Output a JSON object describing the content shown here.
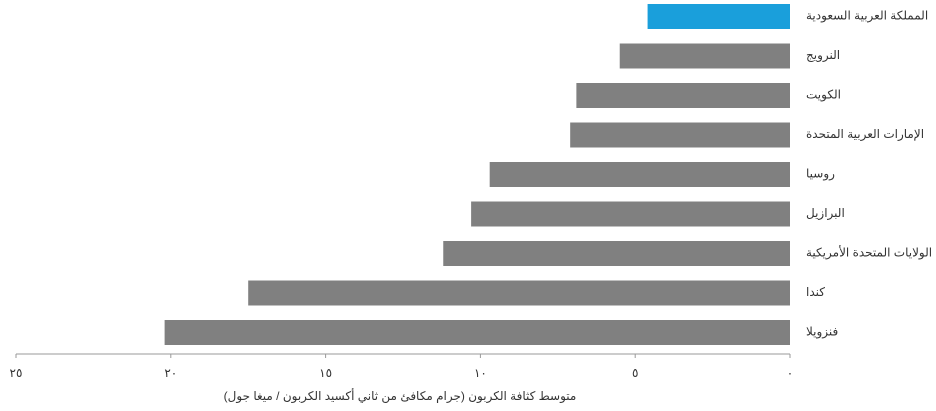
{
  "chart_data": {
    "type": "barh",
    "x_label": "متوسط كثافة الكربون (جرام مكافئ من ثاني أكسيد الكربون / ميغا جول)",
    "categories": [
      "المملكة العربية السعودية",
      "النرويج",
      "الكويت",
      "الإمارات العربية المتحدة",
      "روسيا",
      "البرازيل",
      "الولايات المتحدة الأمريكية",
      "كندا",
      "فنزويلا"
    ],
    "values": [
      4.6,
      5.5,
      6.9,
      7.1,
      9.7,
      10.3,
      11.2,
      17.5,
      20.2
    ],
    "colors": [
      "#1a9fdb",
      "#808080",
      "#808080",
      "#808080",
      "#808080",
      "#808080",
      "#808080",
      "#808080",
      "#808080"
    ],
    "xlim": [
      0,
      25
    ],
    "xticks": [
      {
        "value": 0,
        "label": "٠"
      },
      {
        "value": 5,
        "label": "٥"
      },
      {
        "value": 10,
        "label": "١٠"
      },
      {
        "value": 15,
        "label": "١٥"
      },
      {
        "value": 20,
        "label": "٢٠"
      },
      {
        "value": 25,
        "label": "٢٥"
      }
    ],
    "x_reversed": true
  }
}
